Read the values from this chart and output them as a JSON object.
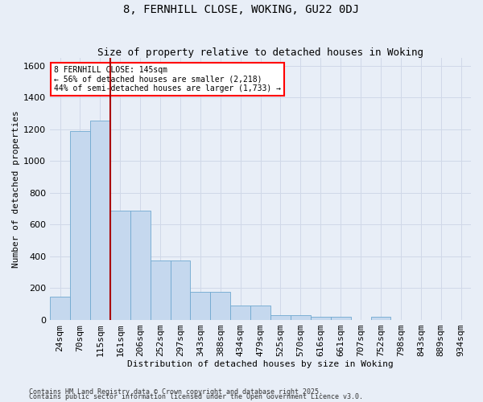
{
  "title": "8, FERNHILL CLOSE, WOKING, GU22 0DJ",
  "subtitle": "Size of property relative to detached houses in Woking",
  "xlabel": "Distribution of detached houses by size in Woking",
  "ylabel": "Number of detached properties",
  "categories": [
    "24sqm",
    "70sqm",
    "115sqm",
    "161sqm",
    "206sqm",
    "252sqm",
    "297sqm",
    "343sqm",
    "388sqm",
    "434sqm",
    "479sqm",
    "525sqm",
    "570sqm",
    "616sqm",
    "661sqm",
    "707sqm",
    "752sqm",
    "798sqm",
    "843sqm",
    "889sqm",
    "934sqm"
  ],
  "values": [
    148,
    1190,
    1255,
    690,
    690,
    375,
    375,
    175,
    175,
    90,
    90,
    30,
    30,
    18,
    18,
    0,
    18,
    0,
    0,
    0,
    0
  ],
  "bar_color": "#c5d8ee",
  "bar_edge_color": "#6fa8d0",
  "background_color": "#e8eef7",
  "grid_color": "#d0d8e8",
  "vline_color": "#aa0000",
  "vline_index": 2.5,
  "annotation_text": "8 FERNHILL CLOSE: 145sqm\n← 56% of detached houses are smaller (2,218)\n44% of semi-detached houses are larger (1,733) →",
  "ylim": [
    0,
    1650
  ],
  "yticks": [
    0,
    200,
    400,
    600,
    800,
    1000,
    1200,
    1400,
    1600
  ],
  "footnote1": "Contains HM Land Registry data © Crown copyright and database right 2025.",
  "footnote2": "Contains public sector information licensed under the Open Government Licence v3.0."
}
